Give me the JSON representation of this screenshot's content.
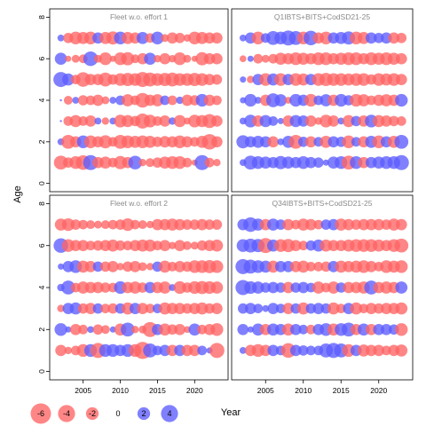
{
  "chart_data": {
    "type": "scatter",
    "subtype": "bubble",
    "xlabel": "Year",
    "ylabel": "Age",
    "xlim": [
      2000.5,
      2024.5
    ],
    "ylim": [
      -0.4,
      8.4
    ],
    "x_ticks": [
      2005,
      2010,
      2015,
      2020
    ],
    "y_ticks": [
      0,
      2,
      4,
      6,
      8
    ],
    "colors": {
      "positive": "#5c5cff",
      "negative": "#ff6464"
    },
    "legend": {
      "placement": "bottom-left",
      "values": [
        -6,
        -4,
        -2,
        0,
        2,
        4
      ],
      "labels": [
        "-6",
        "-4",
        "-2",
        "0",
        "2",
        "4"
      ]
    },
    "panels": [
      {
        "title": "Fleet w.o. effort 1",
        "years": [
          2002,
          2003,
          2004,
          2005,
          2006,
          2007,
          2008,
          2009,
          2010,
          2011,
          2012,
          2013,
          2014,
          2015,
          2016,
          2017,
          2018,
          2019,
          2020,
          2021,
          2022,
          2023
        ],
        "ages": [
          1,
          2,
          3,
          4,
          5,
          6,
          7
        ],
        "values": {
          "1": [
            -2.5,
            -1.2,
            -2.0,
            -2.8,
            3.0,
            -1.5,
            -1.8,
            -1.0,
            -2.2,
            -1.5,
            2.4,
            -0.5,
            -0.8,
            -1.2,
            -1.8,
            -2.0,
            -2.0,
            -1.0,
            -0.3,
            3.0,
            -1.0,
            -0.5
          ],
          "2": [
            0.4,
            -2.5,
            -1.5,
            2.0,
            -2.0,
            -1.5,
            -2.2,
            -1.0,
            -2.5,
            -2.0,
            -1.8,
            -2.0,
            -1.8,
            -1.2,
            -1.6,
            -1.5,
            -2.0,
            -1.5,
            -1.0,
            -1.8,
            -3.2,
            -1.5
          ],
          "3": [
            0,
            -1.0,
            -1.8,
            -1.0,
            -1.5,
            0.4,
            -0.5,
            0.4,
            -2.0,
            -1.8,
            -1.2,
            -3.0,
            -2.0,
            -1.0,
            -1.5,
            0.5,
            -1.8,
            -0.4,
            -2.0,
            -1.8,
            -2.5,
            -1.5
          ],
          "4": [
            0,
            -0.8,
            0.4,
            -1.2,
            -1.0,
            -1.5,
            -0.6,
            0.4,
            1.0,
            -1.8,
            -1.0,
            -2.8,
            -1.5,
            -1.8,
            1.0,
            -1.0,
            0.5,
            -1.5,
            -1.2,
            2.0,
            -1.5,
            -1.0
          ],
          "5": [
            3.0,
            1.8,
            -1.0,
            -2.8,
            -1.5,
            -1.5,
            -2.5,
            -1.2,
            -2.0,
            -2.2,
            -2.0,
            -3.0,
            -2.5,
            -2.0,
            -2.2,
            -2.5,
            -2.0,
            -2.0,
            -2.2,
            -2.0,
            -1.5,
            -1.2
          ],
          "6": [
            1.8,
            -0.3,
            -0.6,
            -0.8,
            2.8,
            -0.6,
            -2.0,
            -0.3,
            -2.0,
            -2.2,
            -0.8,
            -1.5,
            1.8,
            -0.5,
            -1.5,
            -0.5,
            -2.0,
            -0.6,
            -0.3,
            -2.2,
            -1.5,
            -1.5
          ],
          "7": [
            0.4,
            -1.2,
            -2.0,
            -1.8,
            -2.0,
            1.5,
            -1.8,
            -2.2,
            2.0,
            -1.8,
            -1.5,
            1.8,
            -1.0,
            2.0,
            -0.6,
            -1.5,
            -1.2,
            -0.5,
            -2.0,
            -1.8,
            -1.5,
            -1.5
          ]
        }
      },
      {
        "title": "Q1IBTS+BITS+CodSD21-25",
        "years": [
          2002,
          2003,
          2004,
          2005,
          2006,
          2007,
          2008,
          2009,
          2010,
          2011,
          2012,
          2013,
          2014,
          2015,
          2016,
          2017,
          2018,
          2019,
          2020,
          2021,
          2022,
          2023
        ],
        "ages": [
          1,
          2,
          3,
          4,
          5,
          6,
          7
        ],
        "values": {
          "1": [
            0.4,
            2.5,
            2.0,
            1.8,
            1.5,
            2.2,
            1.8,
            1.5,
            2.0,
            1.5,
            1.2,
            0.3,
            1.8,
            2.0,
            -2.5,
            2.0,
            -1.5,
            1.5,
            1.8,
            2.0,
            2.0,
            3.0
          ],
          "2": [
            2.2,
            1.5,
            1.8,
            1.5,
            -1.5,
            0.4,
            1.8,
            -2.5,
            1.2,
            -1.5,
            1.0,
            -1.8,
            1.5,
            1.2,
            -2.0,
            1.0,
            -1.5,
            1.8,
            -2.0,
            1.5,
            -1.8,
            2.5
          ],
          "3": [
            0.4,
            2.0,
            -1.5,
            1.8,
            1.0,
            0.3,
            -1.5,
            1.8,
            1.5,
            -1.5,
            -0.5,
            -2.0,
            -1.5,
            0.4,
            -1.8,
            1.2,
            -1.5,
            2.0,
            -1.8,
            -1.5,
            -1.2,
            -1.0
          ],
          "4": [
            0.3,
            2.0,
            0.4,
            -1.5,
            2.5,
            1.8,
            -0.4,
            2.0,
            1.5,
            -2.0,
            1.0,
            1.8,
            -1.5,
            2.0,
            1.2,
            -2.0,
            -1.8,
            -1.0,
            -1.5,
            -1.8,
            -1.5,
            2.0
          ],
          "5": [
            0.3,
            -0.5,
            1.5,
            -2.0,
            1.8,
            -2.0,
            1.5,
            -2.0,
            -1.8,
            1.5,
            -2.0,
            -2.2,
            -2.0,
            -2.0,
            -1.8,
            -2.0,
            -2.0,
            -1.2,
            -2.0,
            -1.8,
            -2.0,
            -1.5
          ],
          "6": [
            -0.4,
            0.3,
            -1.0,
            -0.6,
            -1.0,
            -1.8,
            -1.5,
            -2.0,
            -1.8,
            -1.5,
            -2.0,
            -2.0,
            -1.5,
            -1.8,
            -2.0,
            -2.0,
            -1.5,
            -2.0,
            -1.8,
            -2.0,
            -1.8,
            -1.5
          ],
          "7": [
            0.4,
            1.5,
            -2.0,
            1.0,
            2.5,
            2.0,
            3.0,
            2.5,
            -2.0,
            2.8,
            -1.5,
            -2.0,
            1.5,
            1.8,
            2.2,
            -2.0,
            -1.8,
            1.5,
            1.2,
            1.5,
            -1.5,
            -1.2
          ]
        }
      },
      {
        "title": "Fleet w.o. effort 2",
        "years": [
          2002,
          2003,
          2004,
          2005,
          2006,
          2007,
          2008,
          2009,
          2010,
          2011,
          2012,
          2013,
          2014,
          2015,
          2016,
          2017,
          2018,
          2019,
          2020,
          2021,
          2022,
          2023
        ],
        "ages": [
          1,
          2,
          3,
          4,
          5,
          6,
          7
        ],
        "values": {
          "1": [
            -1.5,
            -0.5,
            -1.0,
            -2.0,
            2.0,
            -3.0,
            2.0,
            2.0,
            1.5,
            2.0,
            -2.0,
            -4.0,
            2.5,
            1.0,
            1.5,
            -1.5,
            1.5,
            -1.5,
            -1.5,
            1.0,
            0.3,
            -3.0
          ],
          "2": [
            2.0,
            0.3,
            -1.5,
            -1.0,
            0.4,
            -1.2,
            -0.8,
            0.3,
            -1.8,
            2.5,
            -0.5,
            -0.6,
            -3.0,
            1.5,
            -1.8,
            -1.2,
            -1.5,
            -0.4,
            1.8,
            -1.0,
            -1.5,
            -2.0
          ],
          "3": [
            -0.5,
            1.5,
            1.8,
            -1.2,
            -1.5,
            1.2,
            -1.0,
            -1.2,
            1.2,
            -1.8,
            1.5,
            -1.5,
            -1.0,
            1.0,
            -1.8,
            -1.5,
            -1.5,
            -1.2,
            -1.5,
            -1.8,
            -1.2,
            -1.5
          ],
          "4": [
            0.5,
            2.5,
            -1.0,
            -1.8,
            -1.5,
            -1.5,
            -1.2,
            -1.0,
            2.0,
            -1.5,
            -1.8,
            -1.2,
            1.5,
            -1.5,
            -1.8,
            0.4,
            -2.0,
            -1.2,
            -2.0,
            -2.2,
            -2.0,
            -1.8
          ],
          "5": [
            0.3,
            1.5,
            2.0,
            -1.8,
            -1.5,
            1.2,
            -1.2,
            -1.5,
            -0.5,
            -1.2,
            -1.5,
            -0.8,
            -0.5,
            1.2,
            -1.8,
            -1.0,
            -1.5,
            -1.2,
            -2.0,
            -2.0,
            -2.2,
            -2.0
          ],
          "6": [
            2.8,
            -2.0,
            -1.5,
            -1.5,
            -1.0,
            -1.2,
            -1.5,
            -1.8,
            -1.2,
            -1.0,
            -1.5,
            -1.8,
            -1.8,
            -1.0,
            -1.5,
            -0.5,
            -1.5,
            -0.8,
            -0.6,
            -1.2,
            -1.5,
            -1.8
          ],
          "7": [
            -1.8,
            -2.0,
            -1.2,
            -1.0,
            -0.8,
            -0.6,
            -0.8,
            -1.0,
            -1.2,
            -2.0,
            -1.0,
            -0.8,
            -0.5,
            -1.5,
            -1.5,
            -1.8,
            -1.5,
            -1.2,
            -1.2,
            -1.5,
            -1.2,
            -1.2
          ]
        }
      },
      {
        "title": "Q34IBTS+BITS+CodSD21-25",
        "years": [
          2002,
          2003,
          2004,
          2005,
          2006,
          2007,
          2008,
          2009,
          2010,
          2011,
          2012,
          2013,
          2014,
          2015,
          2016,
          2017,
          2018,
          2019,
          2020,
          2021,
          2022,
          2023
        ],
        "ages": [
          1,
          2,
          3,
          4,
          5,
          6,
          7
        ],
        "values": {
          "1": [
            0.4,
            -1.5,
            -2.0,
            -1.5,
            1.5,
            1.0,
            -2.8,
            1.5,
            1.2,
            1.0,
            1.0,
            2.5,
            3.0,
            2.5,
            -2.0,
            1.5,
            -1.8,
            -1.5,
            -1.5,
            -1.0,
            -1.5,
            -1.8
          ],
          "2": [
            1.5,
            0.3,
            1.8,
            -1.5,
            1.8,
            1.5,
            -1.8,
            1.5,
            1.0,
            -1.0,
            1.5,
            2.0,
            -1.8,
            2.0,
            2.5,
            -1.5,
            1.8,
            -1.5,
            1.5,
            1.5,
            1.2,
            -2.0
          ],
          "3": [
            1.2,
            1.5,
            1.0,
            0.4,
            1.5,
            1.0,
            -1.5,
            1.2,
            -1.8,
            1.2,
            1.5,
            1.2,
            -1.8,
            -1.0,
            1.5,
            -1.8,
            -1.0,
            -1.5,
            -1.2,
            -1.5,
            -1.5,
            -1.8
          ],
          "4": [
            3.0,
            2.0,
            1.8,
            1.2,
            1.5,
            1.2,
            -1.5,
            1.2,
            1.5,
            1.0,
            -1.8,
            -1.0,
            -1.8,
            1.2,
            -1.5,
            -1.5,
            -1.8,
            2.5,
            -1.5,
            -1.8,
            -1.5,
            1.8
          ],
          "5": [
            3.0,
            2.5,
            2.0,
            1.8,
            -1.8,
            1.5,
            1.5,
            -1.5,
            -1.8,
            -1.0,
            -1.0,
            -1.2,
            1.5,
            -1.8,
            -1.5,
            -1.8,
            -2.0,
            -1.5,
            -1.0,
            -2.0,
            -1.8,
            -2.0
          ],
          "6": [
            2.0,
            2.5,
            2.2,
            -3.0,
            1.8,
            -2.0,
            -2.2,
            -1.5,
            -1.0,
            1.2,
            1.8,
            -1.8,
            -1.5,
            -1.5,
            -1.8,
            -2.0,
            -2.0,
            -2.0,
            -1.8,
            -1.5,
            -2.0,
            -2.5
          ],
          "7": [
            1.5,
            2.8,
            1.8,
            -1.5,
            1.8,
            1.2,
            -1.5,
            -1.0,
            -1.8,
            -1.5,
            -1.0,
            1.2,
            1.5,
            -1.8,
            -1.5,
            -1.2,
            -1.5,
            -1.5,
            -1.5,
            -1.2,
            -1.8,
            -1.5
          ]
        }
      }
    ]
  }
}
